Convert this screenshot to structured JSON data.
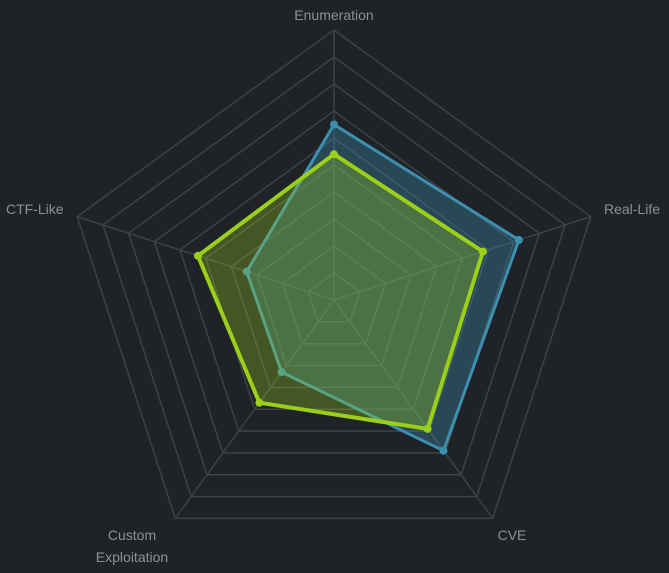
{
  "chart_data": {
    "type": "radar",
    "axes": [
      "Enumeration",
      "Real-Life",
      "CVE",
      "Custom\nExploitation",
      "CTF-Like"
    ],
    "rmax": 10,
    "grid_levels": 10,
    "series": [
      {
        "values": [
          6.5,
          7.2,
          6.9,
          3.3,
          3.4
        ],
        "color": "#3d8fb0",
        "fill": "rgba(61,143,176,0.35)"
      },
      {
        "values": [
          5.4,
          5.8,
          5.9,
          4.7,
          5.3
        ],
        "color": "#9ccf1a",
        "fill": "rgba(156,207,26,0.30)"
      }
    ],
    "grid": true,
    "legend": "none"
  },
  "colors": {
    "background": "#1f2227",
    "grid": "#3e4148",
    "label": "#8d9096"
  }
}
